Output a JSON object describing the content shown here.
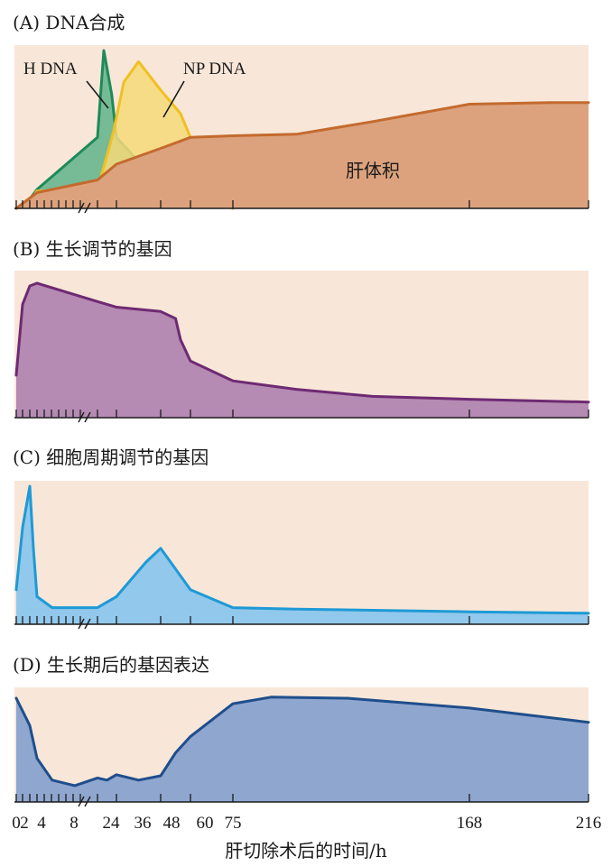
{
  "chart_data": [
    {
      "panel": "A",
      "type": "area",
      "title": "(A) DNA合成",
      "x_ticks": [
        0,
        2,
        4,
        8,
        24,
        36,
        48,
        60,
        75,
        168,
        216
      ],
      "series": [
        {
          "name": "H DNA",
          "color": "#1e8a5a",
          "fill": "#5fb38a",
          "points": [
            [
              0,
              0
            ],
            [
              4,
              0.06
            ],
            [
              8,
              0.12
            ],
            [
              24,
              0.45
            ],
            [
              28,
              1.0
            ],
            [
              33,
              0.72
            ],
            [
              36,
              0.45
            ],
            [
              45,
              0.22
            ],
            [
              48,
              0.25
            ],
            [
              52,
              0.18
            ],
            [
              56,
              0.22
            ],
            [
              62,
              0.16
            ],
            [
              75,
              0.15
            ],
            [
              75,
              0
            ]
          ]
        },
        {
          "name": "NP DNA",
          "color": "#f0c020",
          "fill": "#f7d97a",
          "points": [
            [
              0,
              0
            ],
            [
              4,
              0.05
            ],
            [
              8,
              0.11
            ],
            [
              24,
              0.12
            ],
            [
              34,
              0.48
            ],
            [
              38,
              0.8
            ],
            [
              42,
              0.93
            ],
            [
              48,
              0.75
            ],
            [
              56,
              0.6
            ],
            [
              60,
              0.45
            ],
            [
              64,
              0.3
            ],
            [
              75,
              0.2
            ],
            [
              75,
              0
            ]
          ]
        },
        {
          "name": "肝体积",
          "color": "#c46a2e",
          "fill": "#dca27e",
          "points": [
            [
              0,
              0
            ],
            [
              8,
              0.1
            ],
            [
              24,
              0.18
            ],
            [
              36,
              0.28
            ],
            [
              48,
              0.38
            ],
            [
              60,
              0.45
            ],
            [
              75,
              0.46
            ],
            [
              100,
              0.47
            ],
            [
              130,
              0.55
            ],
            [
              168,
              0.66
            ],
            [
              200,
              0.67
            ],
            [
              216,
              0.67
            ]
          ]
        }
      ]
    },
    {
      "panel": "B",
      "type": "area",
      "title": "(B) 生长调节的基因",
      "series": [
        {
          "name": "生长调节的基因",
          "color": "#6e2a72",
          "fill": "#b58ab3",
          "points": [
            [
              0,
              0.3
            ],
            [
              2,
              0.8
            ],
            [
              4,
              0.93
            ],
            [
              8,
              0.95
            ],
            [
              24,
              0.82
            ],
            [
              36,
              0.78
            ],
            [
              48,
              0.75
            ],
            [
              54,
              0.7
            ],
            [
              56,
              0.55
            ],
            [
              60,
              0.4
            ],
            [
              75,
              0.26
            ],
            [
              100,
              0.2
            ],
            [
              130,
              0.15
            ],
            [
              168,
              0.13
            ],
            [
              216,
              0.11
            ]
          ]
        }
      ]
    },
    {
      "panel": "C",
      "type": "area",
      "title": "(C) 细胞周期调节的基因",
      "series": [
        {
          "name": "细胞周期调节的基因",
          "color": "#1e9ad6",
          "fill": "#92c8eb",
          "points": [
            [
              0,
              0.25
            ],
            [
              2,
              0.7
            ],
            [
              4,
              1.0
            ],
            [
              6,
              0.55
            ],
            [
              8,
              0.2
            ],
            [
              12,
              0.12
            ],
            [
              24,
              0.12
            ],
            [
              36,
              0.2
            ],
            [
              44,
              0.45
            ],
            [
              48,
              0.55
            ],
            [
              52,
              0.45
            ],
            [
              60,
              0.25
            ],
            [
              75,
              0.12
            ],
            [
              100,
              0.11
            ],
            [
              168,
              0.09
            ],
            [
              216,
              0.08
            ]
          ]
        }
      ]
    },
    {
      "panel": "D",
      "type": "area",
      "title": "(D) 生长期后的基因表达",
      "series": [
        {
          "name": "生长期后的基因表达",
          "color": "#1f4e8c",
          "fill": "#8fa6cf",
          "points": [
            [
              0,
              0.95
            ],
            [
              4,
              0.7
            ],
            [
              8,
              0.4
            ],
            [
              12,
              0.2
            ],
            [
              18,
              0.15
            ],
            [
              24,
              0.22
            ],
            [
              30,
              0.2
            ],
            [
              36,
              0.25
            ],
            [
              42,
              0.2
            ],
            [
              48,
              0.24
            ],
            [
              54,
              0.45
            ],
            [
              60,
              0.6
            ],
            [
              75,
              0.9
            ],
            [
              90,
              0.96
            ],
            [
              120,
              0.95
            ],
            [
              168,
              0.86
            ],
            [
              216,
              0.73
            ]
          ]
        }
      ]
    }
  ],
  "labels": {
    "h_dna": "H DNA",
    "np_dna": "NP DNA",
    "liver_volume": "肝体积"
  },
  "x_tick_labels": [
    "0",
    "2",
    "4",
    "8",
    "24",
    "36",
    "48",
    "60",
    "75",
    "168",
    "216"
  ],
  "xlabel": "肝切除术后的时间/h",
  "colors": {
    "panel_bg": "#f8e7d8",
    "axis": "#1a1a1a"
  }
}
